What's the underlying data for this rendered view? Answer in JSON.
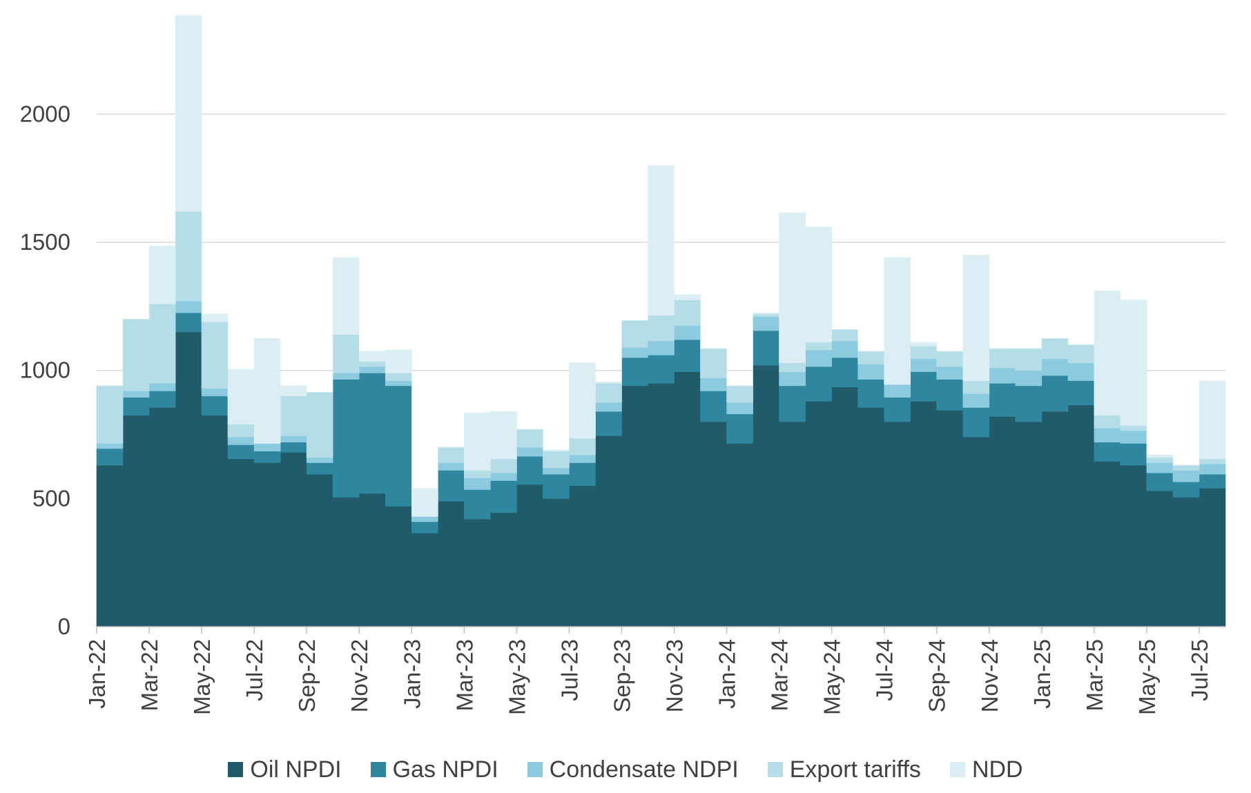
{
  "chart_data": {
    "type": "area",
    "stacked": true,
    "step": true,
    "title": "",
    "xlabel": "",
    "ylabel": "",
    "ylim": [
      0,
      2400
    ],
    "yticks": [
      0,
      500,
      1000,
      1500,
      2000
    ],
    "grid": true,
    "legend_position": "bottom",
    "x": [
      "Jan-22",
      "Feb-22",
      "Mar-22",
      "Apr-22",
      "May-22",
      "Jun-22",
      "Jul-22",
      "Aug-22",
      "Sep-22",
      "Oct-22",
      "Nov-22",
      "Dec-22",
      "Jan-23",
      "Feb-23",
      "Mar-23",
      "Apr-23",
      "May-23",
      "Jun-23",
      "Jul-23",
      "Aug-23",
      "Sep-23",
      "Oct-23",
      "Nov-23",
      "Dec-23",
      "Jan-24",
      "Feb-24",
      "Mar-24",
      "Apr-24",
      "May-24",
      "Jun-24",
      "Jul-24",
      "Aug-24",
      "Sep-24",
      "Oct-24",
      "Nov-24",
      "Dec-24",
      "Jan-25",
      "Feb-25",
      "Mar-25",
      "Apr-25",
      "May-25",
      "Jun-25",
      "Jul-25"
    ],
    "xticks": [
      "Jan-22",
      "Mar-22",
      "May-22",
      "Jul-22",
      "Sep-22",
      "Nov-22",
      "Jan-23",
      "Mar-23",
      "May-23",
      "Jul-23",
      "Sep-23",
      "Nov-23",
      "Jan-24",
      "Mar-24",
      "May-24",
      "Jul-24",
      "Sep-24",
      "Nov-24",
      "Jan-25",
      "Mar-25",
      "May-25",
      "Jul-25"
    ],
    "series": [
      {
        "name": "Oil NPDI",
        "color": "#215b69",
        "values": [
          630,
          825,
          855,
          1150,
          825,
          655,
          640,
          680,
          595,
          505,
          520,
          470,
          365,
          490,
          420,
          445,
          555,
          500,
          550,
          745,
          940,
          950,
          995,
          800,
          715,
          1020,
          800,
          880,
          935,
          855,
          800,
          880,
          845,
          740,
          820,
          800,
          840,
          865,
          645,
          630,
          530,
          505,
          540
        ]
      },
      {
        "name": "Gas NPDI",
        "color": "#2e879f",
        "values": [
          65,
          70,
          65,
          75,
          75,
          55,
          45,
          40,
          45,
          460,
          470,
          470,
          45,
          120,
          115,
          125,
          110,
          95,
          90,
          95,
          110,
          110,
          125,
          120,
          115,
          135,
          140,
          135,
          115,
          110,
          95,
          115,
          120,
          115,
          130,
          140,
          140,
          95,
          75,
          85,
          70,
          60,
          55
        ]
      },
      {
        "name": "Condensate NDPI",
        "color": "#8ccae0",
        "values": [
          20,
          25,
          30,
          45,
          30,
          30,
          30,
          25,
          20,
          25,
          25,
          20,
          20,
          30,
          45,
          30,
          35,
          25,
          30,
          35,
          40,
          55,
          55,
          50,
          45,
          55,
          55,
          65,
          65,
          60,
          50,
          50,
          50,
          55,
          60,
          60,
          65,
          70,
          55,
          50,
          40,
          45,
          40
        ]
      },
      {
        "name": "Export tariffs",
        "color": "#b5dde8",
        "values": [
          225,
          280,
          310,
          350,
          260,
          50,
          0,
          155,
          255,
          150,
          20,
          30,
          0,
          60,
          30,
          55,
          70,
          65,
          65,
          75,
          105,
          100,
          100,
          115,
          65,
          10,
          35,
          30,
          45,
          50,
          0,
          50,
          60,
          50,
          75,
          85,
          80,
          70,
          50,
          20,
          20,
          20,
          20
        ]
      },
      {
        "name": "NDD",
        "color": "#dbeef3",
        "values": [
          0,
          0,
          225,
          765,
          30,
          215,
          410,
          40,
          0,
          300,
          40,
          90,
          110,
          0,
          225,
          185,
          0,
          5,
          295,
          5,
          0,
          585,
          20,
          0,
          0,
          5,
          585,
          450,
          0,
          0,
          495,
          15,
          0,
          490,
          0,
          0,
          0,
          0,
          485,
          490,
          10,
          0,
          305
        ]
      }
    ]
  }
}
